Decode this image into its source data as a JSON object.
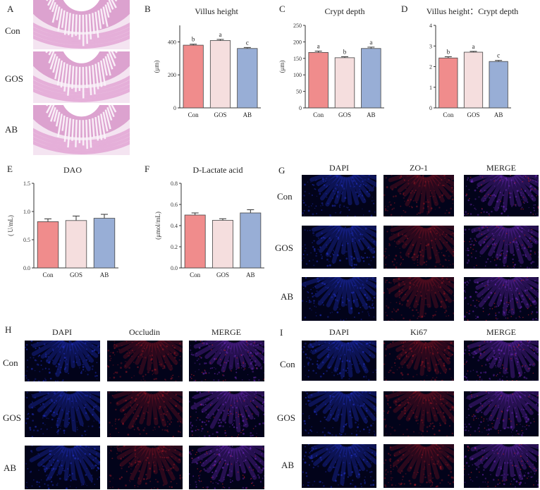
{
  "panels": {
    "A": {
      "letter": "A",
      "rows": [
        "Con",
        "GOS",
        "AB"
      ]
    },
    "G": {
      "letter": "G",
      "cols": [
        "DAPI",
        "ZO-1",
        "MERGE"
      ],
      "rows": [
        "Con",
        "GOS",
        "AB"
      ]
    },
    "H": {
      "letter": "H",
      "cols": [
        "DAPI",
        "Occludin",
        "MERGE"
      ],
      "rows": [
        "Con",
        "GOS",
        "AB"
      ]
    },
    "I": {
      "letter": "I",
      "cols": [
        "DAPI",
        "Ki67",
        "MERGE"
      ],
      "rows": [
        "Con",
        "GOS",
        "AB"
      ]
    }
  },
  "colors": {
    "Con": "#f08c8c",
    "GOS": "#f5dede",
    "AB": "#98aed6",
    "dapi": "#2233cc",
    "red_stain": "#c81e28",
    "merge": "#7a2ecc",
    "he_stain": "#d883c4"
  },
  "chart_data": [
    {
      "id": "B",
      "letter": "B",
      "type": "bar",
      "title": "Villus height",
      "categories": [
        "Con",
        "GOS",
        "AB"
      ],
      "values": [
        380,
        408,
        360
      ],
      "errors": [
        6,
        7,
        6
      ],
      "ylabel": "(μm)",
      "ylim": [
        0,
        500
      ],
      "yticks": [
        0,
        200,
        400
      ],
      "sig": [
        "b",
        "a",
        "c"
      ]
    },
    {
      "id": "C",
      "letter": "C",
      "type": "bar",
      "title": "Crypt depth",
      "categories": [
        "Con",
        "GOS",
        "AB"
      ],
      "values": [
        168,
        152,
        180
      ],
      "errors": [
        4,
        3,
        4
      ],
      "ylabel": "(μm)",
      "ylim": [
        0,
        250
      ],
      "yticks": [
        0,
        50,
        100,
        150,
        200,
        250
      ],
      "sig": [
        "a",
        "b",
        "a"
      ]
    },
    {
      "id": "D",
      "letter": "D",
      "type": "bar",
      "title": "Villus height：Crypt depth",
      "categories": [
        "Con",
        "GOS",
        "AB"
      ],
      "values": [
        2.42,
        2.7,
        2.25
      ],
      "errors": [
        0.06,
        0.04,
        0.05
      ],
      "ylabel": "",
      "ylim": [
        0,
        4
      ],
      "yticks": [
        0,
        1,
        2,
        3,
        4
      ],
      "sig": [
        "b",
        "a",
        "c"
      ]
    },
    {
      "id": "E",
      "letter": "E",
      "type": "bar",
      "title": "DAO",
      "categories": [
        "Con",
        "GOS",
        "AB"
      ],
      "values": [
        0.82,
        0.84,
        0.88
      ],
      "errors": [
        0.05,
        0.08,
        0.07
      ],
      "ylabel": "( U/mL)",
      "ylim": [
        0,
        1.5
      ],
      "yticks": [
        0.0,
        0.5,
        1.0,
        1.5
      ],
      "sig": []
    },
    {
      "id": "F",
      "letter": "F",
      "type": "bar",
      "title": "D-Lactate acid",
      "categories": [
        "Con",
        "GOS",
        "AB"
      ],
      "values": [
        0.5,
        0.45,
        0.52
      ],
      "errors": [
        0.02,
        0.015,
        0.03
      ],
      "ylabel": "(μmol/mL)",
      "ylim": [
        0,
        0.8
      ],
      "yticks": [
        0.0,
        0.2,
        0.4,
        0.6,
        0.8
      ],
      "sig": []
    }
  ]
}
